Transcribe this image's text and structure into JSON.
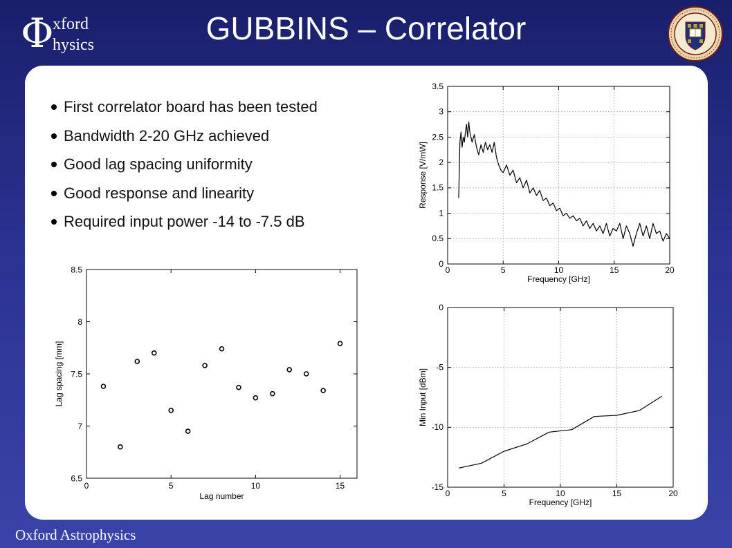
{
  "slide": {
    "title": "GUBBINS – Correlator",
    "logo": {
      "symbol": "Φ",
      "line1": "xford",
      "line2": "hysics"
    },
    "seal_icon": "university-of-oxford-seal",
    "footer": "Oxford Astrophysics",
    "bullets": [
      "First correlator board has been tested",
      "Bandwidth 2-20 GHz achieved",
      "Good lag spacing uniformity",
      "Good response and linearity",
      "Required input power -14 to -7.5 dB"
    ]
  },
  "chart_data": [
    {
      "type": "scatter",
      "xlabel": "Lag number",
      "ylabel": "Lag spacing [mm]",
      "xlim": [
        0,
        16
      ],
      "ylim": [
        6.5,
        8.5
      ],
      "xticks": [
        "0",
        "5",
        "10",
        "15"
      ],
      "yticks": [
        "6.5",
        "7",
        "7.5",
        "8",
        "8.5"
      ],
      "xtick_values": [
        0,
        5,
        10,
        15
      ],
      "ytick_values": [
        6.5,
        7,
        7.5,
        8,
        8.5
      ],
      "grid": false,
      "x": [
        1,
        2,
        3,
        4,
        5,
        6,
        7,
        8,
        9,
        10,
        11,
        12,
        13,
        14,
        15
      ],
      "y": [
        7.38,
        6.8,
        7.62,
        7.7,
        7.15,
        6.95,
        7.58,
        7.74,
        7.37,
        7.27,
        7.31,
        7.54,
        7.5,
        7.34,
        7.79
      ]
    },
    {
      "type": "line",
      "xlabel": "Frequency [GHz]",
      "ylabel": "Response [V/mW]",
      "xlim": [
        0,
        20
      ],
      "ylim": [
        0,
        3.5
      ],
      "xticks": [
        "0",
        "5",
        "10",
        "15",
        "20"
      ],
      "yticks": [
        "0",
        "0.5",
        "1",
        "1.5",
        "2",
        "2.5",
        "3",
        "3.5"
      ],
      "xtick_values": [
        0,
        5,
        10,
        15,
        20
      ],
      "ytick_values": [
        0,
        0.5,
        1,
        1.5,
        2,
        2.5,
        3,
        3.5
      ],
      "grid": true,
      "x": [
        1.0,
        1.1,
        1.2,
        1.3,
        1.4,
        1.5,
        1.6,
        1.7,
        1.8,
        1.9,
        2.0,
        2.2,
        2.4,
        2.6,
        2.8,
        3.0,
        3.2,
        3.4,
        3.6,
        3.8,
        4.0,
        4.2,
        4.4,
        4.6,
        4.8,
        5.0,
        5.3,
        5.6,
        5.9,
        6.2,
        6.5,
        6.8,
        7.1,
        7.4,
        7.7,
        8.0,
        8.3,
        8.6,
        8.9,
        9.2,
        9.5,
        9.8,
        10.1,
        10.4,
        10.7,
        11.0,
        11.3,
        11.6,
        11.9,
        12.2,
        12.5,
        12.8,
        13.1,
        13.4,
        13.7,
        14.0,
        14.3,
        14.6,
        14.9,
        15.2,
        15.5,
        15.8,
        16.1,
        16.4,
        16.7,
        17.0,
        17.3,
        17.6,
        17.9,
        18.2,
        18.5,
        18.8,
        19.1,
        19.4,
        19.7,
        20.0
      ],
      "y": [
        1.3,
        2.4,
        2.6,
        2.3,
        2.5,
        2.4,
        2.6,
        2.75,
        2.5,
        2.8,
        2.6,
        2.4,
        2.55,
        2.3,
        2.15,
        2.35,
        2.2,
        2.4,
        2.25,
        2.35,
        2.2,
        2.4,
        2.1,
        1.95,
        1.85,
        1.8,
        1.95,
        1.75,
        1.85,
        1.6,
        1.7,
        1.5,
        1.65,
        1.4,
        1.5,
        1.35,
        1.45,
        1.25,
        1.3,
        1.15,
        1.2,
        1.05,
        1.1,
        0.95,
        1.0,
        0.9,
        0.95,
        0.85,
        0.9,
        0.75,
        0.85,
        0.7,
        0.8,
        0.65,
        0.75,
        0.6,
        0.8,
        0.55,
        0.7,
        0.65,
        0.8,
        0.5,
        0.75,
        0.6,
        0.35,
        0.6,
        0.8,
        0.55,
        0.75,
        0.5,
        0.8,
        0.6,
        0.65,
        0.45,
        0.6,
        0.5
      ]
    },
    {
      "type": "line",
      "xlabel": "Frequency [GHz]",
      "ylabel": "Min Input [dBm]",
      "xlim": [
        0,
        20
      ],
      "ylim": [
        -15,
        0
      ],
      "xticks": [
        "0",
        "5",
        "10",
        "15",
        "20"
      ],
      "yticks": [
        "-15",
        "-10",
        "-5",
        "0"
      ],
      "xtick_values": [
        0,
        5,
        10,
        15,
        20
      ],
      "ytick_values": [
        -15,
        -10,
        -5,
        0
      ],
      "grid": true,
      "x": [
        1,
        3,
        5,
        7,
        9,
        11,
        13,
        15,
        17,
        19
      ],
      "y": [
        -13.4,
        -13.0,
        -12.0,
        -11.4,
        -10.4,
        -10.2,
        -9.1,
        -9.0,
        -8.6,
        -7.4
      ]
    }
  ]
}
